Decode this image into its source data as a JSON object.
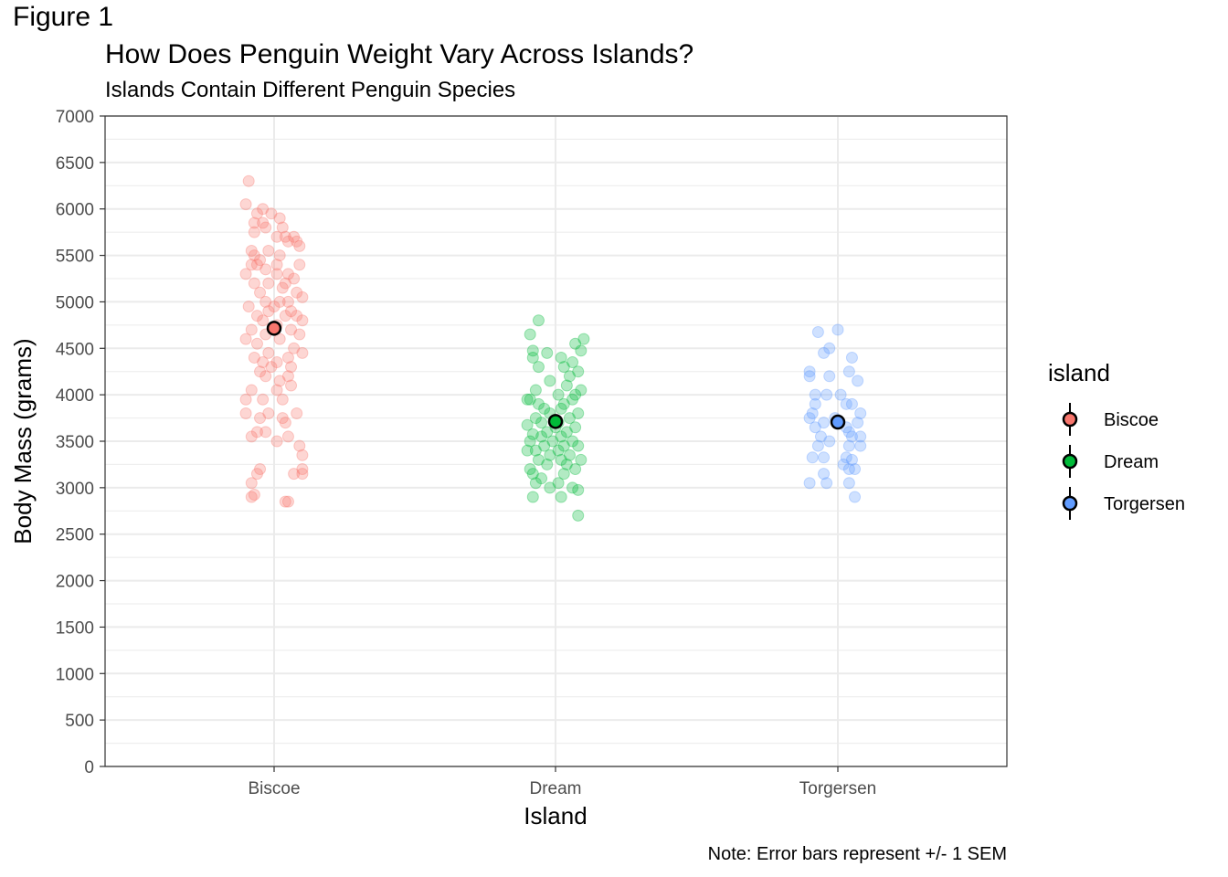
{
  "figure_label": "Figure 1",
  "chart_data": {
    "type": "scatter",
    "title": "How Does Penguin Weight Vary Across Islands?",
    "subtitle": "Islands Contain Different Penguin Species",
    "xlabel": "Island",
    "ylabel": "Body Mass (grams)",
    "caption": "Note: Error bars represent +/- 1 SEM",
    "categories": [
      "Biscoe",
      "Dream",
      "Torgersen"
    ],
    "ylim": [
      0,
      7000
    ],
    "yticks": [
      0,
      500,
      1000,
      1500,
      2000,
      2500,
      3000,
      3500,
      4000,
      4500,
      5000,
      5500,
      6000,
      6500,
      7000
    ],
    "grid": true,
    "legend": {
      "title": "island",
      "placement": "right"
    },
    "colors": {
      "Biscoe": "#F8766D",
      "Dream": "#00BA38",
      "Torgersen": "#619CFF"
    },
    "series": [
      {
        "name": "Biscoe",
        "mean": 4716,
        "sem": 60,
        "points": [
          [
            -0.09,
            6300
          ],
          [
            -0.1,
            6050
          ],
          [
            -0.04,
            6000
          ],
          [
            -0.06,
            5950
          ],
          [
            -0.01,
            5950
          ],
          [
            0.02,
            5900
          ],
          [
            -0.07,
            5850
          ],
          [
            -0.04,
            5850
          ],
          [
            0.03,
            5800
          ],
          [
            -0.03,
            5800
          ],
          [
            -0.07,
            5750
          ],
          [
            0.07,
            5700
          ],
          [
            0.04,
            5700
          ],
          [
            0.08,
            5650
          ],
          [
            0.01,
            5700
          ],
          [
            0.05,
            5650
          ],
          [
            -0.08,
            5550
          ],
          [
            -0.07,
            5500
          ],
          [
            0.09,
            5600
          ],
          [
            -0.02,
            5550
          ],
          [
            0.02,
            5500
          ],
          [
            -0.05,
            5450
          ],
          [
            0.01,
            5400
          ],
          [
            -0.06,
            5400
          ],
          [
            0.09,
            5400
          ],
          [
            -0.08,
            5400
          ],
          [
            -0.03,
            5350
          ],
          [
            0.05,
            5300
          ],
          [
            0.01,
            5300
          ],
          [
            -0.1,
            5300
          ],
          [
            0.07,
            5250
          ],
          [
            -0.02,
            5200
          ],
          [
            0.04,
            5200
          ],
          [
            -0.07,
            5200
          ],
          [
            0.03,
            5150
          ],
          [
            0.08,
            5100
          ],
          [
            -0.05,
            5100
          ],
          [
            0.1,
            5050
          ],
          [
            0.02,
            5000
          ],
          [
            -0.03,
            5000
          ],
          [
            0.05,
            5000
          ],
          [
            0.0,
            4950
          ],
          [
            -0.09,
            4950
          ],
          [
            0.06,
            4900
          ],
          [
            -0.02,
            4900
          ],
          [
            0.08,
            4850
          ],
          [
            -0.06,
            4850
          ],
          [
            0.04,
            4850
          ],
          [
            -0.04,
            4800
          ],
          [
            0.1,
            4800
          ],
          [
            0.01,
            4750
          ],
          [
            -0.08,
            4700
          ],
          [
            0.06,
            4700
          ],
          [
            -0.03,
            4650
          ],
          [
            0.09,
            4650
          ],
          [
            -0.1,
            4600
          ],
          [
            0.02,
            4600
          ],
          [
            -0.06,
            4550
          ],
          [
            0.07,
            4500
          ],
          [
            -0.02,
            4450
          ],
          [
            0.1,
            4450
          ],
          [
            -0.07,
            4400
          ],
          [
            0.05,
            4400
          ],
          [
            0.01,
            4350
          ],
          [
            -0.04,
            4350
          ],
          [
            0.06,
            4300
          ],
          [
            -0.01,
            4300
          ],
          [
            -0.05,
            4250
          ],
          [
            0.05,
            4200
          ],
          [
            -0.03,
            4200
          ],
          [
            0.02,
            4150
          ],
          [
            0.06,
            4100
          ],
          [
            -0.08,
            4050
          ],
          [
            0.01,
            4050
          ],
          [
            -0.1,
            3950
          ],
          [
            0.03,
            3950
          ],
          [
            -0.04,
            3950
          ],
          [
            0.08,
            3800
          ],
          [
            -0.02,
            3800
          ],
          [
            -0.1,
            3800
          ],
          [
            0.03,
            3750
          ],
          [
            -0.05,
            3750
          ],
          [
            0.04,
            3700
          ],
          [
            -0.06,
            3600
          ],
          [
            0.05,
            3550
          ],
          [
            -0.03,
            3600
          ],
          [
            -0.08,
            3550
          ],
          [
            0.01,
            3500
          ],
          [
            0.09,
            3450
          ],
          [
            0.1,
            3350
          ],
          [
            -0.05,
            3200
          ],
          [
            -0.06,
            3150
          ],
          [
            0.07,
            3150
          ],
          [
            0.1,
            3150
          ],
          [
            0.1,
            3200
          ],
          [
            -0.08,
            3050
          ],
          [
            -0.07,
            2925
          ],
          [
            -0.08,
            2900
          ],
          [
            0.04,
            2850
          ],
          [
            0.05,
            2850
          ]
        ]
      },
      {
        "name": "Dream",
        "mean": 3713,
        "sem": 40,
        "points": [
          [
            -0.06,
            4800
          ],
          [
            -0.09,
            4650
          ],
          [
            0.1,
            4600
          ],
          [
            0.07,
            4550
          ],
          [
            -0.08,
            4475
          ],
          [
            -0.03,
            4450
          ],
          [
            0.09,
            4475
          ],
          [
            -0.08,
            4400
          ],
          [
            0.02,
            4400
          ],
          [
            0.06,
            4350
          ],
          [
            -0.06,
            4300
          ],
          [
            0.03,
            4300
          ],
          [
            0.08,
            4250
          ],
          [
            0.05,
            4200
          ],
          [
            -0.02,
            4150
          ],
          [
            0.04,
            4100
          ],
          [
            -0.07,
            4050
          ],
          [
            0.09,
            4050
          ],
          [
            0.07,
            4000
          ],
          [
            0.01,
            4000
          ],
          [
            -0.1,
            3950
          ],
          [
            -0.09,
            3950
          ],
          [
            0.06,
            3950
          ],
          [
            -0.06,
            3900
          ],
          [
            0.03,
            3900
          ],
          [
            0.02,
            3850
          ],
          [
            -0.04,
            3850
          ],
          [
            0.08,
            3800
          ],
          [
            -0.02,
            3800
          ],
          [
            -0.07,
            3750
          ],
          [
            0.05,
            3750
          ],
          [
            0.01,
            3700
          ],
          [
            -0.05,
            3700
          ],
          [
            -0.1,
            3675
          ],
          [
            0.07,
            3650
          ],
          [
            0.0,
            3650
          ],
          [
            -0.03,
            3600
          ],
          [
            0.04,
            3600
          ],
          [
            -0.08,
            3575
          ],
          [
            0.02,
            3550
          ],
          [
            -0.05,
            3550
          ],
          [
            0.06,
            3500
          ],
          [
            -0.01,
            3500
          ],
          [
            -0.09,
            3500
          ],
          [
            0.03,
            3450
          ],
          [
            0.08,
            3450
          ],
          [
            -0.04,
            3450
          ],
          [
            -0.1,
            3400
          ],
          [
            0.01,
            3400
          ],
          [
            -0.07,
            3400
          ],
          [
            0.05,
            3350
          ],
          [
            -0.02,
            3350
          ],
          [
            0.09,
            3300
          ],
          [
            -0.06,
            3300
          ],
          [
            0.02,
            3300
          ],
          [
            -0.03,
            3250
          ],
          [
            0.04,
            3250
          ],
          [
            -0.09,
            3200
          ],
          [
            0.07,
            3200
          ],
          [
            -0.08,
            3150
          ],
          [
            0.03,
            3150
          ],
          [
            -0.05,
            3100
          ],
          [
            0.01,
            3050
          ],
          [
            -0.07,
            3050
          ],
          [
            0.06,
            3000
          ],
          [
            -0.02,
            3000
          ],
          [
            0.08,
            2975
          ],
          [
            -0.08,
            2900
          ],
          [
            0.02,
            2900
          ],
          [
            0.08,
            2700
          ]
        ]
      },
      {
        "name": "Torgersen",
        "mean": 3706,
        "sem": 70,
        "points": [
          [
            -0.07,
            4675
          ],
          [
            0.0,
            4700
          ],
          [
            -0.05,
            4450
          ],
          [
            -0.03,
            4500
          ],
          [
            0.05,
            4400
          ],
          [
            -0.1,
            4250
          ],
          [
            -0.1,
            4200
          ],
          [
            -0.03,
            4200
          ],
          [
            0.04,
            4250
          ],
          [
            0.07,
            4150
          ],
          [
            -0.08,
            4000
          ],
          [
            -0.04,
            4000
          ],
          [
            0.01,
            4000
          ],
          [
            -0.08,
            3900
          ],
          [
            0.05,
            3900
          ],
          [
            0.03,
            3900
          ],
          [
            -0.09,
            3800
          ],
          [
            0.08,
            3800
          ],
          [
            -0.1,
            3750
          ],
          [
            -0.01,
            3750
          ],
          [
            0.07,
            3700
          ],
          [
            -0.05,
            3700
          ],
          [
            0.03,
            3650
          ],
          [
            0.04,
            3600
          ],
          [
            -0.08,
            3650
          ],
          [
            -0.06,
            3550
          ],
          [
            0.05,
            3550
          ],
          [
            0.08,
            3550
          ],
          [
            -0.03,
            3500
          ],
          [
            0.04,
            3450
          ],
          [
            -0.07,
            3450
          ],
          [
            0.08,
            3450
          ],
          [
            -0.09,
            3325
          ],
          [
            -0.05,
            3325
          ],
          [
            0.03,
            3325
          ],
          [
            0.02,
            3250
          ],
          [
            0.05,
            3300
          ],
          [
            0.04,
            3200
          ],
          [
            0.06,
            3200
          ],
          [
            -0.05,
            3150
          ],
          [
            -0.1,
            3050
          ],
          [
            -0.04,
            3050
          ],
          [
            0.04,
            3050
          ],
          [
            0.06,
            2900
          ]
        ]
      }
    ]
  }
}
